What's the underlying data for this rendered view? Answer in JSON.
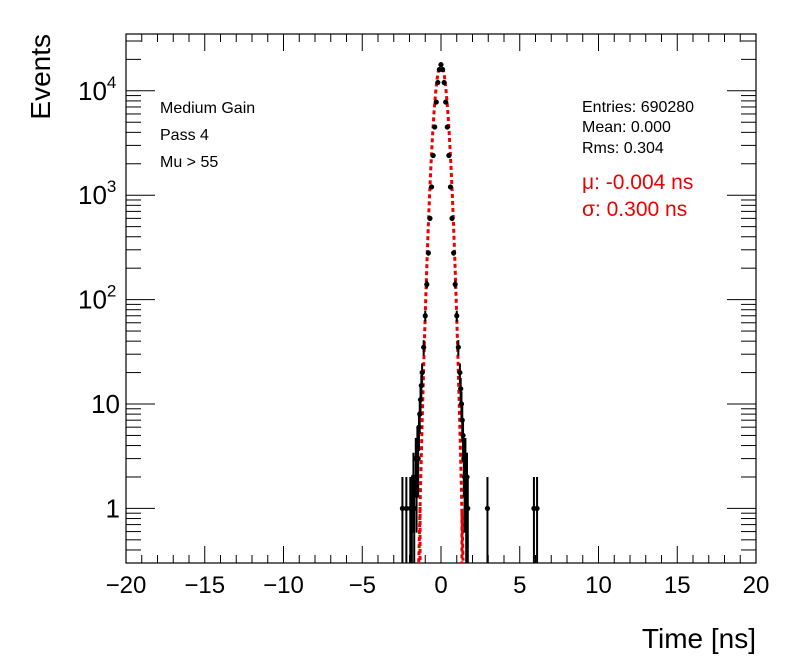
{
  "chart_data": {
    "type": "scatter",
    "title": "",
    "xlabel": "Time [ns]",
    "ylabel": "Events",
    "xlim": [
      -20,
      20
    ],
    "ylim": [
      0.3,
      35000
    ],
    "yscale": "log",
    "x_ticks": [
      "−20",
      "−15",
      "−10",
      "−5",
      "0",
      "5",
      "10",
      "15",
      "20"
    ],
    "x_tick_values": [
      -20,
      -15,
      -10,
      -5,
      0,
      5,
      10,
      15,
      20
    ],
    "y_ticks": [
      {
        "value": 1,
        "base": "1",
        "exp": ""
      },
      {
        "value": 10,
        "base": "10",
        "exp": ""
      },
      {
        "value": 100,
        "base": "10",
        "exp": "2"
      },
      {
        "value": 1000,
        "base": "10",
        "exp": "3"
      },
      {
        "value": 10000,
        "base": "10",
        "exp": "4"
      }
    ],
    "annotations_left": [
      "Medium Gain",
      "Pass 4",
      "Mu > 55"
    ],
    "stats": [
      "Entries: 690280",
      "Mean: 0.000",
      "Rms: 0.304"
    ],
    "fit_text": [
      "μ: -0.004 ns",
      "σ: 0.300 ns"
    ],
    "fit": {
      "mu": -0.004,
      "sigma": 0.3,
      "amplitude": 18000,
      "color": "#ee0000",
      "style": "dashed"
    },
    "series": [
      {
        "color": "#000000",
        "points": [
          [
            -2.45,
            1
          ],
          [
            -2.2,
            1
          ],
          [
            -1.95,
            1
          ],
          [
            -1.85,
            1
          ],
          [
            -1.75,
            2
          ],
          [
            -1.7,
            1
          ],
          [
            -1.6,
            3
          ],
          [
            -1.55,
            2
          ],
          [
            -1.5,
            4
          ],
          [
            -1.45,
            3
          ],
          [
            -1.4,
            6
          ],
          [
            -1.35,
            8
          ],
          [
            -1.3,
            11
          ],
          [
            -1.25,
            15
          ],
          [
            -1.2,
            20
          ],
          [
            -1.1,
            35
          ],
          [
            -1.0,
            70
          ],
          [
            -0.9,
            140
          ],
          [
            -0.8,
            280
          ],
          [
            -0.7,
            600
          ],
          [
            -0.6,
            1200
          ],
          [
            -0.5,
            2400
          ],
          [
            -0.4,
            4500
          ],
          [
            -0.3,
            7800
          ],
          [
            -0.2,
            12000
          ],
          [
            -0.1,
            16000
          ],
          [
            0.0,
            17800
          ],
          [
            0.1,
            16000
          ],
          [
            0.2,
            12000
          ],
          [
            0.3,
            7800
          ],
          [
            0.4,
            4500
          ],
          [
            0.5,
            2400
          ],
          [
            0.6,
            1200
          ],
          [
            0.7,
            600
          ],
          [
            0.8,
            280
          ],
          [
            0.9,
            140
          ],
          [
            1.0,
            70
          ],
          [
            1.1,
            35
          ],
          [
            1.2,
            20
          ],
          [
            1.25,
            14
          ],
          [
            1.3,
            10
          ],
          [
            1.35,
            7
          ],
          [
            1.4,
            5
          ],
          [
            1.45,
            3
          ],
          [
            1.5,
            2
          ],
          [
            1.55,
            3
          ],
          [
            1.6,
            1
          ],
          [
            1.65,
            2
          ],
          [
            1.7,
            1
          ],
          [
            2.95,
            1
          ],
          [
            5.9,
            1
          ],
          [
            6.1,
            1
          ]
        ]
      }
    ]
  }
}
